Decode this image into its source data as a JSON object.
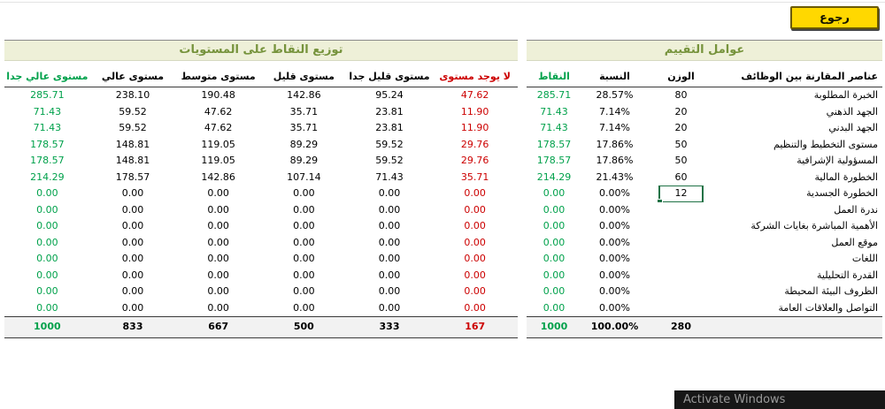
{
  "back_button": {
    "label": "رجوع"
  },
  "colors": {
    "positive_green": "#00a14b",
    "negative_red": "#cc0000",
    "title_olive": "#76933c",
    "button_yellow": "#ffd800",
    "band_background": "#eef0d8"
  },
  "eval": {
    "title": "عوامل التقييم",
    "headers": {
      "label": "عناصر المقارنة بين الوظائف",
      "weight": "الوزن",
      "percent": "النسبة",
      "points": "النقاط"
    },
    "rows": [
      {
        "label": "الخبرة المطلوبة",
        "weight": "80",
        "percent": "28.57%",
        "points": "285.71"
      },
      {
        "label": "الجهد الذهني",
        "weight": "20",
        "percent": "7.14%",
        "points": "71.43"
      },
      {
        "label": "الجهد البدني",
        "weight": "20",
        "percent": "7.14%",
        "points": "71.43"
      },
      {
        "label": "مستوى التخطيط والتنظيم",
        "weight": "50",
        "percent": "17.86%",
        "points": "178.57"
      },
      {
        "label": "المسؤولية الإشرافية",
        "weight": "50",
        "percent": "17.86%",
        "points": "178.57"
      },
      {
        "label": "الخطورة المالية",
        "weight": "60",
        "percent": "21.43%",
        "points": "214.29"
      },
      {
        "label": "الخطورة الجسدية",
        "weight": "12",
        "percent": "0.00%",
        "points": "0.00",
        "editing": true
      },
      {
        "label": "ندرة العمل",
        "weight": "",
        "percent": "0.00%",
        "points": "0.00"
      },
      {
        "label": "الأهمية المباشرة بغايات الشركة",
        "weight": "",
        "percent": "0.00%",
        "points": "0.00"
      },
      {
        "label": "موقع العمل",
        "weight": "",
        "percent": "0.00%",
        "points": "0.00"
      },
      {
        "label": "اللغات",
        "weight": "",
        "percent": "0.00%",
        "points": "0.00"
      },
      {
        "label": "القدرة التحليلية",
        "weight": "",
        "percent": "0.00%",
        "points": "0.00"
      },
      {
        "label": "الظروف البيئة المحيطة",
        "weight": "",
        "percent": "0.00%",
        "points": "0.00"
      },
      {
        "label": "التواصل والعلاقات العامة",
        "weight": "",
        "percent": "0.00%",
        "points": "0.00"
      }
    ],
    "total": {
      "weight": "280",
      "percent": "100.00%",
      "points": "1000"
    }
  },
  "dist": {
    "title": "توزيع النقاط على المستويات",
    "headers": [
      "لا يوجد مستوى",
      "مستوى قليل جدا",
      "مستوى قليل",
      "مستوى متوسط",
      "مستوى عالي",
      "مستوى عالي جدا"
    ],
    "rows": [
      [
        "47.62",
        "95.24",
        "142.86",
        "190.48",
        "238.10",
        "285.71"
      ],
      [
        "11.90",
        "23.81",
        "35.71",
        "47.62",
        "59.52",
        "71.43"
      ],
      [
        "11.90",
        "23.81",
        "35.71",
        "47.62",
        "59.52",
        "71.43"
      ],
      [
        "29.76",
        "59.52",
        "89.29",
        "119.05",
        "148.81",
        "178.57"
      ],
      [
        "29.76",
        "59.52",
        "89.29",
        "119.05",
        "148.81",
        "178.57"
      ],
      [
        "35.71",
        "71.43",
        "107.14",
        "142.86",
        "178.57",
        "214.29"
      ],
      [
        "0.00",
        "0.00",
        "0.00",
        "0.00",
        "0.00",
        "0.00"
      ],
      [
        "0.00",
        "0.00",
        "0.00",
        "0.00",
        "0.00",
        "0.00"
      ],
      [
        "0.00",
        "0.00",
        "0.00",
        "0.00",
        "0.00",
        "0.00"
      ],
      [
        "0.00",
        "0.00",
        "0.00",
        "0.00",
        "0.00",
        "0.00"
      ],
      [
        "0.00",
        "0.00",
        "0.00",
        "0.00",
        "0.00",
        "0.00"
      ],
      [
        "0.00",
        "0.00",
        "0.00",
        "0.00",
        "0.00",
        "0.00"
      ],
      [
        "0.00",
        "0.00",
        "0.00",
        "0.00",
        "0.00",
        "0.00"
      ],
      [
        "0.00",
        "0.00",
        "0.00",
        "0.00",
        "0.00",
        "0.00"
      ]
    ],
    "total": [
      "167",
      "333",
      "500",
      "667",
      "833",
      "1000"
    ]
  },
  "watermark": {
    "text": "Activate Windows"
  }
}
